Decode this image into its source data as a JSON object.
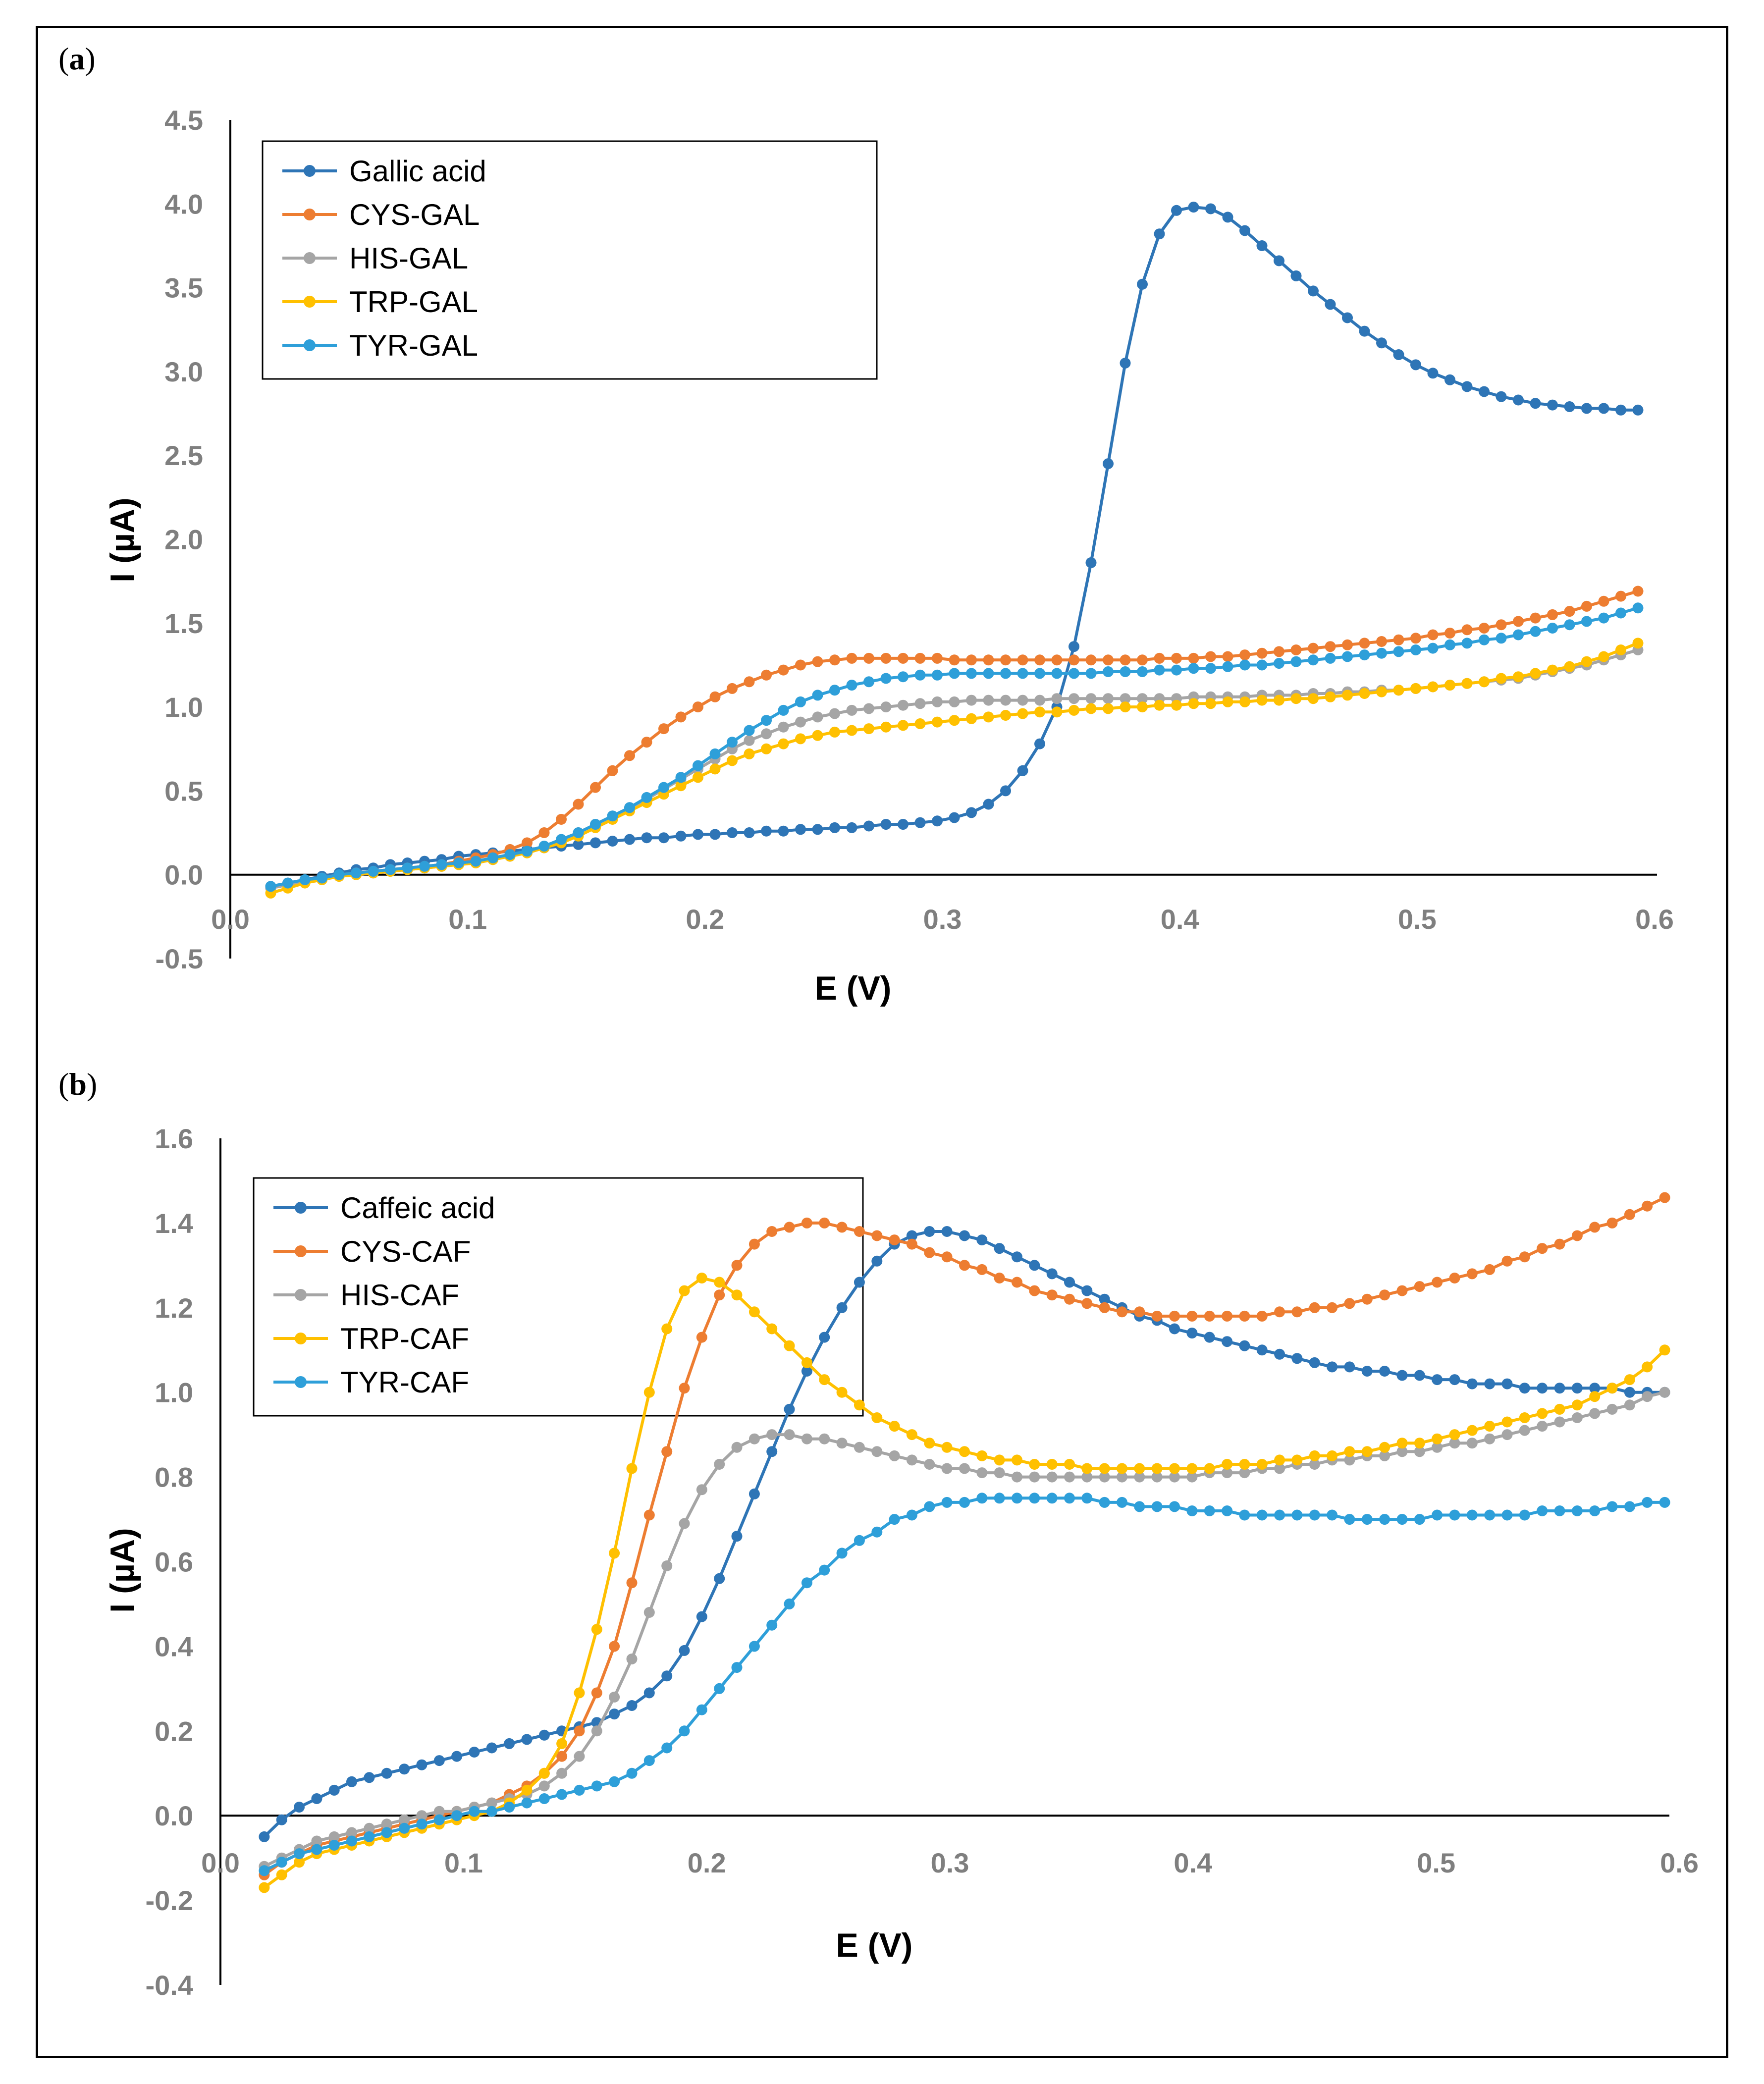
{
  "chart_data": [
    {
      "panel_label": "a",
      "type": "line",
      "xlabel": "E (V)",
      "ylabel": "I (µA)",
      "xlim": [
        0.0,
        0.6
      ],
      "ylim": [
        -0.5,
        4.5
      ],
      "xticks": [
        "0.0",
        "0.1",
        "0.2",
        "0.3",
        "0.4",
        "0.5",
        "0.6"
      ],
      "yticks": [
        "-0.5",
        "0.0",
        "0.5",
        "1.0",
        "1.5",
        "2.0",
        "2.5",
        "3.0",
        "3.5",
        "4.0",
        "4.5"
      ],
      "grid": false,
      "legend": "top-left",
      "x_start": 0.017,
      "x_step": 0.0072,
      "series": [
        {
          "name": "Gallic acid",
          "color": "#2e75b6",
          "values": [
            -0.07,
            -0.05,
            -0.03,
            -0.01,
            0.01,
            0.03,
            0.04,
            0.06,
            0.07,
            0.08,
            0.09,
            0.11,
            0.12,
            0.13,
            0.14,
            0.15,
            0.16,
            0.17,
            0.18,
            0.19,
            0.2,
            0.21,
            0.22,
            0.22,
            0.23,
            0.24,
            0.24,
            0.25,
            0.25,
            0.26,
            0.26,
            0.27,
            0.27,
            0.28,
            0.28,
            0.29,
            0.3,
            0.3,
            0.31,
            0.32,
            0.34,
            0.37,
            0.42,
            0.5,
            0.62,
            0.78,
            1.0,
            1.36,
            1.86,
            2.45,
            3.05,
            3.52,
            3.82,
            3.96,
            3.98,
            3.97,
            3.92,
            3.84,
            3.75,
            3.66,
            3.57,
            3.48,
            3.4,
            3.32,
            3.24,
            3.17,
            3.1,
            3.04,
            2.99,
            2.95,
            2.91,
            2.88,
            2.85,
            2.83,
            2.81,
            2.8,
            2.79,
            2.78,
            2.78,
            2.77,
            2.77
          ]
        },
        {
          "name": "CYS-GAL",
          "color": "#ed7d31",
          "values": [
            -0.08,
            -0.06,
            -0.04,
            -0.02,
            0.0,
            0.01,
            0.02,
            0.03,
            0.04,
            0.05,
            0.06,
            0.08,
            0.1,
            0.12,
            0.15,
            0.19,
            0.25,
            0.33,
            0.42,
            0.52,
            0.62,
            0.71,
            0.79,
            0.87,
            0.94,
            1.0,
            1.06,
            1.11,
            1.15,
            1.19,
            1.22,
            1.25,
            1.27,
            1.28,
            1.29,
            1.29,
            1.29,
            1.29,
            1.29,
            1.29,
            1.28,
            1.28,
            1.28,
            1.28,
            1.28,
            1.28,
            1.28,
            1.28,
            1.28,
            1.28,
            1.28,
            1.28,
            1.29,
            1.29,
            1.29,
            1.3,
            1.3,
            1.31,
            1.32,
            1.33,
            1.34,
            1.35,
            1.36,
            1.37,
            1.38,
            1.39,
            1.4,
            1.41,
            1.43,
            1.44,
            1.46,
            1.47,
            1.49,
            1.51,
            1.53,
            1.55,
            1.57,
            1.6,
            1.63,
            1.66,
            1.69
          ]
        },
        {
          "name": "HIS-GAL",
          "color": "#a5a5a5",
          "values": [
            -0.08,
            -0.06,
            -0.04,
            -0.03,
            -0.01,
            0.0,
            0.01,
            0.02,
            0.03,
            0.04,
            0.05,
            0.06,
            0.07,
            0.09,
            0.11,
            0.13,
            0.16,
            0.2,
            0.25,
            0.3,
            0.35,
            0.4,
            0.45,
            0.51,
            0.57,
            0.63,
            0.69,
            0.75,
            0.8,
            0.84,
            0.88,
            0.91,
            0.94,
            0.96,
            0.98,
            0.99,
            1.0,
            1.01,
            1.02,
            1.03,
            1.03,
            1.04,
            1.04,
            1.04,
            1.04,
            1.04,
            1.05,
            1.05,
            1.05,
            1.05,
            1.05,
            1.05,
            1.05,
            1.05,
            1.06,
            1.06,
            1.06,
            1.06,
            1.07,
            1.07,
            1.07,
            1.08,
            1.08,
            1.09,
            1.09,
            1.1,
            1.1,
            1.11,
            1.12,
            1.13,
            1.14,
            1.15,
            1.16,
            1.17,
            1.19,
            1.21,
            1.23,
            1.25,
            1.28,
            1.31,
            1.34
          ]
        },
        {
          "name": "TRP-GAL",
          "color": "#ffc000",
          "values": [
            -0.11,
            -0.08,
            -0.05,
            -0.03,
            -0.01,
            0.0,
            0.01,
            0.02,
            0.03,
            0.04,
            0.05,
            0.06,
            0.07,
            0.09,
            0.11,
            0.13,
            0.16,
            0.19,
            0.23,
            0.28,
            0.33,
            0.38,
            0.43,
            0.48,
            0.53,
            0.58,
            0.63,
            0.68,
            0.72,
            0.75,
            0.78,
            0.81,
            0.83,
            0.85,
            0.86,
            0.87,
            0.88,
            0.89,
            0.9,
            0.91,
            0.92,
            0.93,
            0.94,
            0.95,
            0.96,
            0.97,
            0.97,
            0.98,
            0.99,
            0.99,
            1.0,
            1.0,
            1.01,
            1.01,
            1.02,
            1.02,
            1.03,
            1.03,
            1.04,
            1.04,
            1.05,
            1.05,
            1.06,
            1.07,
            1.08,
            1.09,
            1.1,
            1.11,
            1.12,
            1.13,
            1.14,
            1.15,
            1.17,
            1.18,
            1.2,
            1.22,
            1.24,
            1.27,
            1.3,
            1.34,
            1.38
          ]
        },
        {
          "name": "TYR-GAL",
          "color": "#2e9fd9",
          "values": [
            -0.07,
            -0.05,
            -0.03,
            -0.02,
            0.0,
            0.01,
            0.02,
            0.03,
            0.04,
            0.05,
            0.06,
            0.07,
            0.08,
            0.1,
            0.12,
            0.14,
            0.17,
            0.21,
            0.25,
            0.3,
            0.35,
            0.4,
            0.46,
            0.52,
            0.58,
            0.65,
            0.72,
            0.79,
            0.86,
            0.92,
            0.98,
            1.03,
            1.07,
            1.1,
            1.13,
            1.15,
            1.17,
            1.18,
            1.19,
            1.19,
            1.2,
            1.2,
            1.2,
            1.2,
            1.2,
            1.2,
            1.2,
            1.2,
            1.2,
            1.21,
            1.21,
            1.21,
            1.22,
            1.22,
            1.23,
            1.23,
            1.24,
            1.25,
            1.25,
            1.26,
            1.27,
            1.28,
            1.29,
            1.3,
            1.31,
            1.32,
            1.33,
            1.34,
            1.35,
            1.37,
            1.38,
            1.4,
            1.41,
            1.43,
            1.45,
            1.47,
            1.49,
            1.51,
            1.53,
            1.56,
            1.59
          ]
        }
      ]
    },
    {
      "panel_label": "b",
      "type": "line",
      "xlabel": "E (V)",
      "ylabel": "I (µA)",
      "xlim": [
        0.0,
        0.6
      ],
      "ylim": [
        -0.4,
        1.6
      ],
      "xticks": [
        "0.0",
        "0.1",
        "0.2",
        "0.3",
        "0.4",
        "0.5",
        "0.6"
      ],
      "yticks": [
        "-0.4",
        "-0.2",
        "0.0",
        "0.2",
        "0.4",
        "0.6",
        "0.8",
        "1.0",
        "1.2",
        "1.4",
        "1.6"
      ],
      "grid": false,
      "legend": "top-left",
      "x_start": 0.018,
      "x_step": 0.0072,
      "series": [
        {
          "name": "Caffeic acid",
          "color": "#2e75b6",
          "values": [
            -0.05,
            -0.01,
            0.02,
            0.04,
            0.06,
            0.08,
            0.09,
            0.1,
            0.11,
            0.12,
            0.13,
            0.14,
            0.15,
            0.16,
            0.17,
            0.18,
            0.19,
            0.2,
            0.21,
            0.22,
            0.24,
            0.26,
            0.29,
            0.33,
            0.39,
            0.47,
            0.56,
            0.66,
            0.76,
            0.86,
            0.96,
            1.05,
            1.13,
            1.2,
            1.26,
            1.31,
            1.35,
            1.37,
            1.38,
            1.38,
            1.37,
            1.36,
            1.34,
            1.32,
            1.3,
            1.28,
            1.26,
            1.24,
            1.22,
            1.2,
            1.18,
            1.17,
            1.15,
            1.14,
            1.13,
            1.12,
            1.11,
            1.1,
            1.09,
            1.08,
            1.07,
            1.06,
            1.06,
            1.05,
            1.05,
            1.04,
            1.04,
            1.03,
            1.03,
            1.02,
            1.02,
            1.02,
            1.01,
            1.01,
            1.01,
            1.01,
            1.01,
            1.01,
            1.0,
            1.0,
            1.0
          ]
        },
        {
          "name": "CYS-CAF",
          "color": "#ed7d31",
          "values": [
            -0.14,
            -0.11,
            -0.09,
            -0.07,
            -0.06,
            -0.05,
            -0.04,
            -0.03,
            -0.02,
            -0.01,
            0.0,
            0.01,
            0.02,
            0.03,
            0.05,
            0.07,
            0.1,
            0.14,
            0.2,
            0.29,
            0.4,
            0.55,
            0.71,
            0.86,
            1.01,
            1.13,
            1.23,
            1.3,
            1.35,
            1.38,
            1.39,
            1.4,
            1.4,
            1.39,
            1.38,
            1.37,
            1.36,
            1.35,
            1.33,
            1.32,
            1.3,
            1.29,
            1.27,
            1.26,
            1.24,
            1.23,
            1.22,
            1.21,
            1.2,
            1.19,
            1.19,
            1.18,
            1.18,
            1.18,
            1.18,
            1.18,
            1.18,
            1.18,
            1.19,
            1.19,
            1.2,
            1.2,
            1.21,
            1.22,
            1.23,
            1.24,
            1.25,
            1.26,
            1.27,
            1.28,
            1.29,
            1.31,
            1.32,
            1.34,
            1.35,
            1.37,
            1.39,
            1.4,
            1.42,
            1.44,
            1.46
          ]
        },
        {
          "name": "HIS-CAF",
          "color": "#a5a5a5",
          "values": [
            -0.12,
            -0.1,
            -0.08,
            -0.06,
            -0.05,
            -0.04,
            -0.03,
            -0.02,
            -0.01,
            0.0,
            0.01,
            0.01,
            0.02,
            0.03,
            0.04,
            0.05,
            0.07,
            0.1,
            0.14,
            0.2,
            0.28,
            0.37,
            0.48,
            0.59,
            0.69,
            0.77,
            0.83,
            0.87,
            0.89,
            0.9,
            0.9,
            0.89,
            0.89,
            0.88,
            0.87,
            0.86,
            0.85,
            0.84,
            0.83,
            0.82,
            0.82,
            0.81,
            0.81,
            0.8,
            0.8,
            0.8,
            0.8,
            0.8,
            0.8,
            0.8,
            0.8,
            0.8,
            0.8,
            0.8,
            0.81,
            0.81,
            0.81,
            0.82,
            0.82,
            0.83,
            0.83,
            0.84,
            0.84,
            0.85,
            0.85,
            0.86,
            0.86,
            0.87,
            0.88,
            0.88,
            0.89,
            0.9,
            0.91,
            0.92,
            0.93,
            0.94,
            0.95,
            0.96,
            0.97,
            0.99,
            1.0
          ]
        },
        {
          "name": "TRP-CAF",
          "color": "#ffc000",
          "values": [
            -0.17,
            -0.14,
            -0.11,
            -0.09,
            -0.08,
            -0.07,
            -0.06,
            -0.05,
            -0.04,
            -0.03,
            -0.02,
            -0.01,
            0.0,
            0.01,
            0.03,
            0.06,
            0.1,
            0.17,
            0.29,
            0.44,
            0.62,
            0.82,
            1.0,
            1.15,
            1.24,
            1.27,
            1.26,
            1.23,
            1.19,
            1.15,
            1.11,
            1.07,
            1.03,
            1.0,
            0.97,
            0.94,
            0.92,
            0.9,
            0.88,
            0.87,
            0.86,
            0.85,
            0.84,
            0.84,
            0.83,
            0.83,
            0.83,
            0.82,
            0.82,
            0.82,
            0.82,
            0.82,
            0.82,
            0.82,
            0.82,
            0.83,
            0.83,
            0.83,
            0.84,
            0.84,
            0.85,
            0.85,
            0.86,
            0.86,
            0.87,
            0.88,
            0.88,
            0.89,
            0.9,
            0.91,
            0.92,
            0.93,
            0.94,
            0.95,
            0.96,
            0.97,
            0.99,
            1.01,
            1.03,
            1.06,
            1.1
          ]
        },
        {
          "name": "TYR-CAF",
          "color": "#2e9fd9",
          "values": [
            -0.13,
            -0.11,
            -0.09,
            -0.08,
            -0.07,
            -0.06,
            -0.05,
            -0.04,
            -0.03,
            -0.02,
            -0.01,
            0.0,
            0.01,
            0.01,
            0.02,
            0.03,
            0.04,
            0.05,
            0.06,
            0.07,
            0.08,
            0.1,
            0.13,
            0.16,
            0.2,
            0.25,
            0.3,
            0.35,
            0.4,
            0.45,
            0.5,
            0.55,
            0.58,
            0.62,
            0.65,
            0.67,
            0.7,
            0.71,
            0.73,
            0.74,
            0.74,
            0.75,
            0.75,
            0.75,
            0.75,
            0.75,
            0.75,
            0.75,
            0.74,
            0.74,
            0.73,
            0.73,
            0.73,
            0.72,
            0.72,
            0.72,
            0.71,
            0.71,
            0.71,
            0.71,
            0.71,
            0.71,
            0.7,
            0.7,
            0.7,
            0.7,
            0.7,
            0.71,
            0.71,
            0.71,
            0.71,
            0.71,
            0.71,
            0.72,
            0.72,
            0.72,
            0.72,
            0.73,
            0.73,
            0.74,
            0.74
          ]
        }
      ]
    }
  ]
}
